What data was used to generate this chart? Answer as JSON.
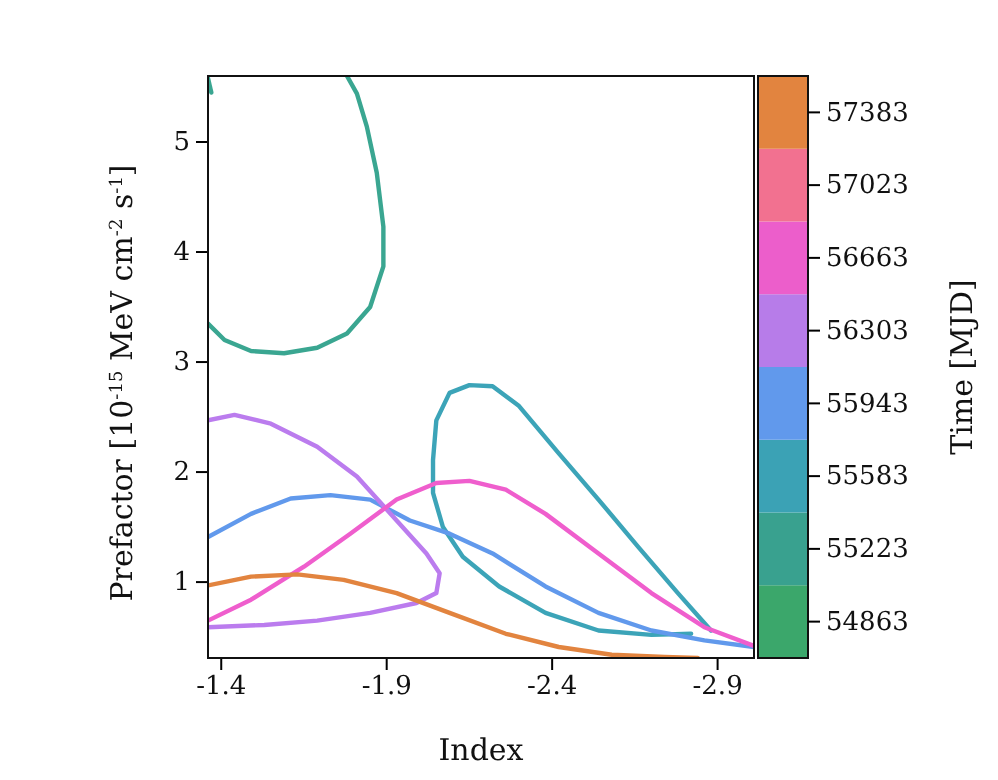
{
  "chart_data": {
    "type": "line",
    "xlabel": "Index",
    "ylabel": "Prefactor [10$^{-15}$ MeV cm$^{-2}$ s$^{-1}$]",
    "clabel": "Time [MJD]",
    "xlim": [
      -1.36,
      -3.01
    ],
    "xticks": [
      -1.4,
      -1.9,
      -2.4,
      -2.9
    ],
    "ylim": [
      0.31,
      5.6
    ],
    "yticks": [
      1,
      2,
      3,
      4,
      5
    ],
    "clim": [
      54683,
      57563
    ],
    "cticks": [
      54863,
      55223,
      55583,
      55943,
      56303,
      56663,
      57023,
      57383
    ],
    "colors": [
      "#3ba76b",
      "#39a18f",
      "#3ba2b5",
      "#6199ec",
      "#b77ce9",
      "#ec5ecb",
      "#f27190",
      "#e2843f"
    ],
    "grid": false,
    "series": [
      {
        "color": "#3aa691",
        "x": [
          -1.36,
          -1.41,
          -1.49,
          -1.59,
          -1.69,
          -1.78,
          -1.85,
          -1.89,
          -1.89,
          -1.87,
          -1.84,
          -1.81,
          -1.78
        ],
        "values": [
          3.35,
          3.2,
          3.1,
          3.08,
          3.13,
          3.26,
          3.5,
          3.87,
          4.23,
          4.72,
          5.14,
          5.44,
          5.6
        ]
      },
      {
        "color": "#3aa691",
        "x": [
          -1.36,
          -1.37
        ],
        "values": [
          5.58,
          5.45
        ]
      },
      {
        "color": "#3ca4b8",
        "x": [
          -2.88,
          -2.78,
          -2.66,
          -2.54,
          -2.42,
          -2.3,
          -2.22,
          -2.15,
          -2.09,
          -2.05,
          -2.04,
          -2.04,
          -2.07,
          -2.13,
          -2.24,
          -2.38,
          -2.54,
          -2.7,
          -2.82
        ],
        "values": [
          0.56,
          0.9,
          1.32,
          1.75,
          2.17,
          2.6,
          2.78,
          2.79,
          2.72,
          2.47,
          2.11,
          1.81,
          1.5,
          1.23,
          0.96,
          0.72,
          0.56,
          0.52,
          0.53
        ]
      },
      {
        "color": "#6199ec",
        "x": [
          -1.36,
          -1.49,
          -1.61,
          -1.73,
          -1.85,
          -1.97,
          -2.09,
          -2.22,
          -2.38,
          -2.54,
          -2.7,
          -2.86,
          -3.01
        ],
        "values": [
          1.41,
          1.62,
          1.76,
          1.79,
          1.75,
          1.56,
          1.44,
          1.26,
          0.96,
          0.72,
          0.56,
          0.47,
          0.41
        ]
      },
      {
        "color": "#bb7cee",
        "x": [
          -1.36,
          -1.44,
          -1.55,
          -1.69,
          -1.81,
          -1.93,
          -2.02,
          -2.06,
          -2.05,
          -1.99,
          -1.85,
          -1.69,
          -1.53,
          -1.36
        ],
        "values": [
          2.47,
          2.52,
          2.44,
          2.23,
          1.96,
          1.56,
          1.26,
          1.08,
          0.9,
          0.81,
          0.72,
          0.65,
          0.61,
          0.59
        ]
      },
      {
        "color": "#ef5ecd",
        "x": [
          -1.36,
          -1.49,
          -1.65,
          -1.79,
          -1.93,
          -2.05,
          -2.15,
          -2.26,
          -2.38,
          -2.54,
          -2.7,
          -2.86,
          -3.01
        ],
        "values": [
          0.65,
          0.84,
          1.14,
          1.44,
          1.75,
          1.9,
          1.92,
          1.84,
          1.62,
          1.26,
          0.9,
          0.59,
          0.42
        ]
      },
      {
        "color": "#e2843f",
        "x": [
          -1.36,
          -1.49,
          -1.63,
          -1.77,
          -1.93,
          -2.09,
          -2.26,
          -2.42,
          -2.58,
          -2.74,
          -2.84
        ],
        "values": [
          0.97,
          1.05,
          1.07,
          1.02,
          0.9,
          0.72,
          0.53,
          0.41,
          0.34,
          0.32,
          0.31
        ]
      }
    ]
  }
}
